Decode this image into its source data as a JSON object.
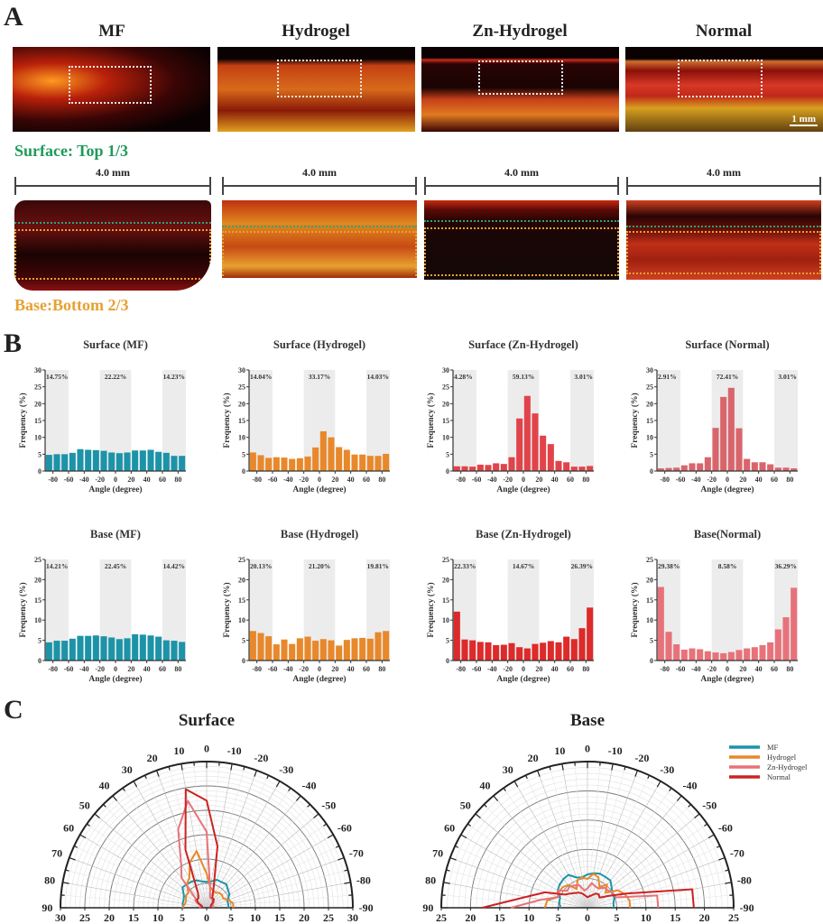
{
  "panel_a": {
    "letter": "A",
    "columns": [
      "MF",
      "Hydrogel",
      "Zn-Hydrogel",
      "Normal"
    ],
    "scale_bar": "1 mm",
    "surface_label": "Surface: Top 1/3",
    "base_label": "Base:Bottom 2/3",
    "width_label": "4.0 mm",
    "colors": {
      "surface": "#1f9a5a",
      "base": "#e8a030"
    }
  },
  "panel_b": {
    "letter": "B"
  },
  "panel_c": {
    "letter": "C"
  },
  "chart_data": [
    {
      "type": "bar",
      "title": "Surface (MF)",
      "xlabel": "Angle (degree)",
      "ylabel": "Frequency (%)",
      "ylim": [
        0,
        30
      ],
      "yticks": [
        0,
        5,
        10,
        15,
        20,
        25,
        30
      ],
      "xticks": [
        -80,
        -60,
        -40,
        -20,
        0,
        20,
        40,
        60,
        80
      ],
      "x": [
        -85,
        -75,
        -65,
        -55,
        -45,
        -35,
        -25,
        -15,
        -5,
        5,
        15,
        25,
        35,
        45,
        55,
        65,
        75,
        85
      ],
      "values": [
        4.8,
        5.0,
        5.0,
        5.4,
        6.5,
        6.3,
        6.2,
        6.0,
        5.5,
        5.3,
        5.5,
        6.1,
        6.1,
        6.3,
        5.7,
        5.4,
        4.5,
        4.5
      ],
      "annotations": [
        "14.75%",
        "22.22%",
        "14.23%"
      ],
      "color": "#1d93a8"
    },
    {
      "type": "bar",
      "title": "Surface (Hydrogel)",
      "xlabel": "Angle (degree)",
      "ylabel": "Frequency (%)",
      "ylim": [
        0,
        30
      ],
      "yticks": [
        0,
        5,
        10,
        15,
        20,
        25,
        30
      ],
      "xticks": [
        -80,
        -60,
        -40,
        -20,
        0,
        20,
        40,
        60,
        80
      ],
      "x": [
        -85,
        -75,
        -65,
        -55,
        -45,
        -35,
        -25,
        -15,
        -5,
        5,
        15,
        25,
        35,
        45,
        55,
        65,
        75,
        85
      ],
      "values": [
        5.5,
        4.7,
        3.9,
        4.1,
        4.0,
        3.6,
        3.8,
        4.3,
        7.0,
        11.8,
        10.0,
        7.1,
        6.3,
        4.9,
        4.9,
        4.5,
        4.5,
        5.1
      ],
      "annotations": [
        "14.04%",
        "33.17%",
        "14.03%"
      ],
      "color": "#e8882a"
    },
    {
      "type": "bar",
      "title": "Surface (Zn-Hydrogel)",
      "xlabel": "Angle (degree)",
      "ylabel": "Frequency (%)",
      "ylim": [
        0,
        30
      ],
      "yticks": [
        0,
        5,
        10,
        15,
        20,
        25,
        30
      ],
      "xticks": [
        -80,
        -60,
        -40,
        -20,
        0,
        20,
        40,
        60,
        80
      ],
      "x": [
        -85,
        -75,
        -65,
        -55,
        -45,
        -35,
        -25,
        -15,
        -5,
        5,
        15,
        25,
        35,
        45,
        55,
        65,
        75,
        85
      ],
      "values": [
        1.4,
        1.4,
        1.3,
        1.9,
        1.8,
        2.3,
        2.1,
        4.1,
        15.6,
        22.3,
        17.1,
        10.5,
        8.0,
        3.0,
        2.6,
        1.3,
        1.3,
        1.5
      ],
      "annotations": [
        "4.28%",
        "59.13%",
        "3.01%"
      ],
      "color": "#e0444a"
    },
    {
      "type": "bar",
      "title": "Surface (Normal)",
      "xlabel": "Angle (degree)",
      "ylabel": "Frequency (%)",
      "ylim": [
        0,
        30
      ],
      "yticks": [
        0,
        5,
        10,
        15,
        20,
        25,
        30
      ],
      "xticks": [
        -80,
        -60,
        -40,
        -20,
        0,
        20,
        40,
        60,
        80
      ],
      "x": [
        -85,
        -75,
        -65,
        -55,
        -45,
        -35,
        -25,
        -15,
        -5,
        5,
        15,
        25,
        35,
        45,
        55,
        65,
        75,
        85
      ],
      "values": [
        0.8,
        0.9,
        1.0,
        1.7,
        2.3,
        2.3,
        4.1,
        12.8,
        22.0,
        24.7,
        12.7,
        3.6,
        2.6,
        2.6,
        2.0,
        1.0,
        1.0,
        0.8
      ],
      "annotations": [
        "2.91%",
        "72.41%",
        "3.01%"
      ],
      "color": "#d9656c"
    },
    {
      "type": "bar",
      "title": "Base (MF)",
      "xlabel": "Angle (degree)",
      "ylabel": "Frequency (%)",
      "ylim": [
        0,
        25
      ],
      "yticks": [
        0,
        5,
        10,
        15,
        20,
        25
      ],
      "xticks": [
        -80,
        -60,
        -40,
        -20,
        0,
        20,
        40,
        60,
        80
      ],
      "x": [
        -85,
        -75,
        -65,
        -55,
        -45,
        -35,
        -25,
        -15,
        -5,
        5,
        15,
        25,
        35,
        45,
        55,
        65,
        75,
        85
      ],
      "values": [
        4.5,
        4.9,
        4.9,
        5.4,
        6.1,
        6.1,
        6.2,
        6.0,
        5.7,
        5.3,
        5.5,
        6.5,
        6.4,
        6.2,
        5.9,
        5.0,
        4.9,
        4.6
      ],
      "annotations": [
        "14.21%",
        "22.45%",
        "14.42%"
      ],
      "color": "#1d93a8"
    },
    {
      "type": "bar",
      "title": "Base (Hydrogel)",
      "xlabel": "Angle (degree)",
      "ylabel": "Frequency (%)",
      "ylim": [
        0,
        25
      ],
      "yticks": [
        0,
        5,
        10,
        15,
        20,
        25
      ],
      "xticks": [
        -80,
        -60,
        -40,
        -20,
        0,
        20,
        40,
        60,
        80
      ],
      "x": [
        -85,
        -75,
        -65,
        -55,
        -45,
        -35,
        -25,
        -15,
        -5,
        5,
        15,
        25,
        35,
        45,
        55,
        65,
        75,
        85
      ],
      "values": [
        7.3,
        6.8,
        6.0,
        4.0,
        5.2,
        4.1,
        5.5,
        5.9,
        4.9,
        5.3,
        5.0,
        3.7,
        5.1,
        5.5,
        5.6,
        5.4,
        7.0,
        7.3
      ],
      "annotations": [
        "20.13%",
        "21.20%",
        "19.81%"
      ],
      "color": "#e8882a"
    },
    {
      "type": "bar",
      "title": "Base (Zn-Hydrogel)",
      "xlabel": "Angle (degree)",
      "ylabel": "Frequency (%)",
      "ylim": [
        0,
        25
      ],
      "yticks": [
        0,
        5,
        10,
        15,
        20,
        25
      ],
      "xticks": [
        -80,
        -60,
        -40,
        -20,
        0,
        20,
        40,
        60,
        80
      ],
      "x": [
        -85,
        -75,
        -65,
        -55,
        -45,
        -35,
        -25,
        -15,
        -5,
        5,
        15,
        25,
        35,
        45,
        55,
        65,
        75,
        85
      ],
      "values": [
        12.1,
        5.2,
        5.0,
        4.6,
        4.5,
        3.8,
        3.9,
        4.3,
        3.3,
        3.0,
        4.1,
        4.4,
        4.8,
        4.5,
        5.9,
        5.3,
        8.0,
        13.1
      ],
      "annotations": [
        "22.33%",
        "14.67%",
        "26.39%"
      ],
      "color": "#dd2a2a"
    },
    {
      "type": "bar",
      "title": "Base(Normal)",
      "xlabel": "Angle (degree)",
      "ylabel": "Frequency (%)",
      "ylim": [
        0,
        25
      ],
      "yticks": [
        0,
        5,
        10,
        15,
        20,
        25
      ],
      "xticks": [
        -80,
        -60,
        -40,
        -20,
        0,
        20,
        40,
        60,
        80
      ],
      "x": [
        -85,
        -75,
        -65,
        -55,
        -45,
        -35,
        -25,
        -15,
        -5,
        5,
        15,
        25,
        35,
        45,
        55,
        65,
        75,
        85
      ],
      "values": [
        18.2,
        7.1,
        4.0,
        2.7,
        3.0,
        2.8,
        2.3,
        2.0,
        1.8,
        2.1,
        2.6,
        3.0,
        3.3,
        3.8,
        4.5,
        7.7,
        10.7,
        18.0
      ],
      "annotations": [
        "29.38%",
        "8.58%",
        "36.29%"
      ],
      "color": "#e8727a"
    },
    {
      "type": "polar",
      "title": "Surface",
      "rlim": [
        0,
        30
      ],
      "rticks": [
        0,
        5,
        10,
        15,
        20,
        25,
        30
      ],
      "theta_ticks": [
        90,
        80,
        70,
        60,
        50,
        40,
        30,
        20,
        10,
        0,
        -10,
        -20,
        -30,
        -40,
        -50,
        -60,
        -70,
        -80,
        -90
      ],
      "rtick_labels": [
        "30",
        "25",
        "20",
        "15",
        "10",
        "5",
        "0",
        "5",
        "10",
        "15",
        "20",
        "25",
        "30"
      ],
      "series": [
        {
          "name": "MF",
          "color": "#1d93a8",
          "angles": [
            90,
            80,
            70,
            60,
            50,
            40,
            30,
            20,
            10,
            0,
            -10,
            -20,
            -30,
            -40,
            -50,
            -60,
            -70,
            -80,
            -90
          ],
          "values": [
            4.8,
            5.0,
            5.0,
            5.4,
            6.5,
            6.3,
            6.2,
            6.0,
            5.5,
            5.3,
            5.5,
            6.1,
            6.1,
            6.3,
            5.7,
            5.4,
            4.5,
            4.5,
            4.5
          ]
        },
        {
          "name": "Hydrogel",
          "color": "#e8882a",
          "angles": [
            90,
            80,
            70,
            60,
            50,
            40,
            30,
            20,
            10,
            0,
            -10,
            -20,
            -30,
            -40,
            -50,
            -60,
            -70,
            -80,
            -90
          ],
          "values": [
            5.1,
            4.5,
            4.5,
            4.9,
            4.9,
            6.3,
            7.1,
            10.0,
            11.8,
            7.0,
            4.3,
            3.8,
            3.6,
            4.0,
            4.1,
            3.9,
            4.7,
            5.5,
            5.5
          ]
        },
        {
          "name": "Zn-Hydrogel",
          "color": "#e8727a",
          "angles": [
            90,
            80,
            70,
            60,
            50,
            40,
            30,
            20,
            10,
            0,
            -10,
            -20,
            -30,
            -40,
            -50,
            -60,
            -70,
            -80,
            -90
          ],
          "values": [
            1.5,
            1.3,
            1.3,
            2.6,
            3.0,
            8.0,
            10.5,
            17.1,
            22.3,
            15.6,
            4.1,
            2.1,
            2.3,
            1.8,
            1.9,
            1.3,
            1.4,
            1.4,
            1.4
          ]
        },
        {
          "name": "Normal",
          "color": "#cc2222",
          "angles": [
            90,
            80,
            70,
            60,
            50,
            40,
            30,
            20,
            10,
            0,
            -10,
            -20,
            -30,
            -40,
            -50,
            -60,
            -70,
            -80,
            -90
          ],
          "values": [
            0.8,
            1.0,
            1.0,
            2.0,
            2.6,
            2.6,
            3.6,
            12.7,
            24.7,
            22.0,
            12.8,
            4.1,
            2.3,
            2.3,
            1.7,
            1.0,
            0.9,
            0.8,
            0.8
          ]
        }
      ]
    },
    {
      "type": "polar",
      "title": "Base",
      "rlim": [
        0,
        25
      ],
      "rticks": [
        0,
        5,
        10,
        15,
        20,
        25
      ],
      "theta_ticks": [
        90,
        80,
        70,
        60,
        50,
        40,
        30,
        20,
        10,
        0,
        -10,
        -20,
        -30,
        -40,
        -50,
        -60,
        -70,
        -80,
        -90
      ],
      "rtick_labels": [
        "25",
        "20",
        "15",
        "10",
        "5",
        "0",
        "5",
        "10",
        "15",
        "20",
        "25"
      ],
      "legend": [
        "MF",
        "Hydrogel",
        "Zn-Hydrogel",
        "Normal"
      ],
      "legend_position": "top-right",
      "series": [
        {
          "name": "MF",
          "color": "#1d93a8",
          "angles": [
            90,
            80,
            70,
            60,
            50,
            40,
            30,
            20,
            10,
            0,
            -10,
            -20,
            -30,
            -40,
            -50,
            -60,
            -70,
            -80,
            -90
          ],
          "values": [
            4.6,
            4.9,
            5.0,
            5.9,
            6.2,
            6.4,
            6.5,
            5.5,
            5.3,
            5.7,
            6.0,
            6.2,
            6.1,
            6.1,
            5.4,
            4.9,
            4.9,
            4.5,
            4.5
          ]
        },
        {
          "name": "Hydrogel",
          "color": "#e8882a",
          "angles": [
            90,
            80,
            70,
            60,
            50,
            40,
            30,
            20,
            10,
            0,
            -10,
            -20,
            -30,
            -40,
            -50,
            -60,
            -70,
            -80,
            -90
          ],
          "values": [
            7.3,
            7.0,
            5.4,
            5.6,
            5.5,
            5.1,
            3.7,
            5.0,
            5.3,
            4.9,
            5.9,
            5.5,
            4.1,
            5.2,
            4.0,
            6.0,
            6.8,
            7.3,
            7.3
          ]
        },
        {
          "name": "Zn-Hydrogel",
          "color": "#e8727a",
          "angles": [
            90,
            80,
            70,
            60,
            50,
            40,
            30,
            20,
            10,
            0,
            -10,
            -20,
            -30,
            -40,
            -50,
            -60,
            -70,
            -80,
            -90
          ],
          "values": [
            13.1,
            8.0,
            5.3,
            5.9,
            4.5,
            4.8,
            4.4,
            4.1,
            3.0,
            3.3,
            4.3,
            3.9,
            3.8,
            4.5,
            4.6,
            5.0,
            5.2,
            12.1,
            12.1
          ]
        },
        {
          "name": "Normal",
          "color": "#cc2222",
          "angles": [
            90,
            80,
            70,
            60,
            50,
            40,
            30,
            20,
            10,
            0,
            -10,
            -20,
            -30,
            -40,
            -50,
            -60,
            -70,
            -80,
            -90
          ],
          "values": [
            18.0,
            10.7,
            7.7,
            4.5,
            3.8,
            3.3,
            3.0,
            2.6,
            2.1,
            1.8,
            2.0,
            2.3,
            2.8,
            3.0,
            2.7,
            4.0,
            7.1,
            18.2,
            18.2
          ]
        }
      ]
    }
  ]
}
